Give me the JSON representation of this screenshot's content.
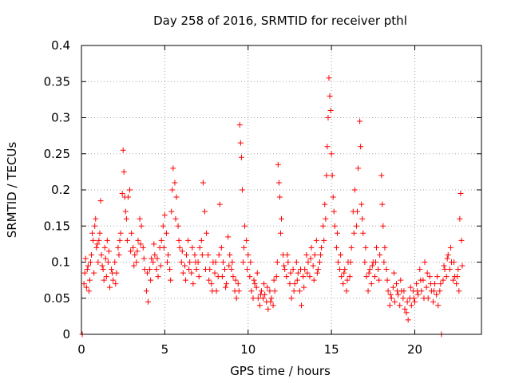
{
  "chart_data": {
    "type": "scatter",
    "title": "Day 258 of 2016, SRMTID for receiver pthl",
    "xlabel": "GPS time / hours",
    "ylabel": "SRMTID / TECUs",
    "xlim": [
      0,
      24
    ],
    "ylim": [
      0,
      0.4
    ],
    "x_ticks": [
      0,
      5,
      10,
      15,
      20
    ],
    "y_ticks": [
      0,
      0.05,
      0.1,
      0.15,
      0.2,
      0.25,
      0.3,
      0.35,
      0.4
    ],
    "grid": true,
    "marker": "+",
    "color": "#ff0000",
    "series_name": "SRMTID",
    "points": [
      [
        0.05,
        0.0
      ],
      [
        0.2,
        0.085
      ],
      [
        0.3,
        0.065
      ],
      [
        0.4,
        0.095
      ],
      [
        0.5,
        0.075
      ],
      [
        0.6,
        0.11
      ],
      [
        0.7,
        0.13
      ],
      [
        0.8,
        0.15
      ],
      [
        0.9,
        0.12
      ],
      [
        1.0,
        0.1
      ],
      [
        1.1,
        0.14
      ],
      [
        1.15,
        0.185
      ],
      [
        1.2,
        0.11
      ],
      [
        1.3,
        0.09
      ],
      [
        1.4,
        0.12
      ],
      [
        1.5,
        0.08
      ],
      [
        1.6,
        0.1
      ],
      [
        1.7,
        0.065
      ],
      [
        1.8,
        0.09
      ],
      [
        1.9,
        0.075
      ],
      [
        2.0,
        0.1
      ],
      [
        2.1,
        0.085
      ],
      [
        2.2,
        0.12
      ],
      [
        2.3,
        0.13
      ],
      [
        2.45,
        0.195
      ],
      [
        2.5,
        0.255
      ],
      [
        2.55,
        0.225
      ],
      [
        2.6,
        0.19
      ],
      [
        2.7,
        0.16
      ],
      [
        2.8,
        0.19
      ],
      [
        2.9,
        0.2
      ],
      [
        3.0,
        0.14
      ],
      [
        3.1,
        0.12
      ],
      [
        3.2,
        0.11
      ],
      [
        3.3,
        0.1
      ],
      [
        3.4,
        0.13
      ],
      [
        3.5,
        0.16
      ],
      [
        3.6,
        0.15
      ],
      [
        3.7,
        0.12
      ],
      [
        3.8,
        0.09
      ],
      [
        3.9,
        0.06
      ],
      [
        4.0,
        0.045
      ],
      [
        4.1,
        0.09
      ],
      [
        4.2,
        0.105
      ],
      [
        4.3,
        0.1
      ],
      [
        4.4,
        0.11
      ],
      [
        4.5,
        0.09
      ],
      [
        4.6,
        0.08
      ],
      [
        4.7,
        0.12
      ],
      [
        4.8,
        0.13
      ],
      [
        4.9,
        0.15
      ],
      [
        5.0,
        0.165
      ],
      [
        5.1,
        0.14
      ],
      [
        5.2,
        0.11
      ],
      [
        5.3,
        0.09
      ],
      [
        5.4,
        0.17
      ],
      [
        5.5,
        0.23
      ],
      [
        5.6,
        0.21
      ],
      [
        5.7,
        0.19
      ],
      [
        5.8,
        0.15
      ],
      [
        5.9,
        0.12
      ],
      [
        6.0,
        0.1
      ],
      [
        6.1,
        0.085
      ],
      [
        6.2,
        0.095
      ],
      [
        6.3,
        0.11
      ],
      [
        6.4,
        0.13
      ],
      [
        6.5,
        0.1
      ],
      [
        6.6,
        0.085
      ],
      [
        6.7,
        0.07
      ],
      [
        6.8,
        0.11
      ],
      [
        6.9,
        0.09
      ],
      [
        7.0,
        0.1
      ],
      [
        7.1,
        0.12
      ],
      [
        7.2,
        0.13
      ],
      [
        7.3,
        0.21
      ],
      [
        7.4,
        0.17
      ],
      [
        7.5,
        0.14
      ],
      [
        7.6,
        0.11
      ],
      [
        7.7,
        0.09
      ],
      [
        7.8,
        0.07
      ],
      [
        7.9,
        0.1
      ],
      [
        8.0,
        0.085
      ],
      [
        8.1,
        0.06
      ],
      [
        8.2,
        0.08
      ],
      [
        8.3,
        0.18
      ],
      [
        8.4,
        0.12
      ],
      [
        8.5,
        0.1
      ],
      [
        8.6,
        0.09
      ],
      [
        8.7,
        0.07
      ],
      [
        8.8,
        0.135
      ],
      [
        8.9,
        0.11
      ],
      [
        9.0,
        0.09
      ],
      [
        9.1,
        0.08
      ],
      [
        9.2,
        0.06
      ],
      [
        9.3,
        0.05
      ],
      [
        9.4,
        0.07
      ],
      [
        9.5,
        0.29
      ],
      [
        9.55,
        0.265
      ],
      [
        9.6,
        0.245
      ],
      [
        9.65,
        0.2
      ],
      [
        9.7,
        0.1
      ],
      [
        9.8,
        0.15
      ],
      [
        9.9,
        0.13
      ],
      [
        10.0,
        0.11
      ],
      [
        10.1,
        0.08
      ],
      [
        10.2,
        0.06
      ],
      [
        10.3,
        0.05
      ],
      [
        10.4,
        0.07
      ],
      [
        10.5,
        0.065
      ],
      [
        10.6,
        0.05
      ],
      [
        10.7,
        0.04
      ],
      [
        10.8,
        0.06
      ],
      [
        10.9,
        0.05
      ],
      [
        11.0,
        0.055
      ],
      [
        11.1,
        0.045
      ],
      [
        11.2,
        0.035
      ],
      [
        11.3,
        0.06
      ],
      [
        11.4,
        0.05
      ],
      [
        11.5,
        0.04
      ],
      [
        11.6,
        0.06
      ],
      [
        11.7,
        0.08
      ],
      [
        11.8,
        0.235
      ],
      [
        11.85,
        0.21
      ],
      [
        11.9,
        0.19
      ],
      [
        12.0,
        0.16
      ],
      [
        12.1,
        0.11
      ],
      [
        12.2,
        0.09
      ],
      [
        12.3,
        0.08
      ],
      [
        12.4,
        0.1
      ],
      [
        12.5,
        0.07
      ],
      [
        12.6,
        0.05
      ],
      [
        12.7,
        0.09
      ],
      [
        12.8,
        0.07
      ],
      [
        12.9,
        0.1
      ],
      [
        13.0,
        0.085
      ],
      [
        13.1,
        0.06
      ],
      [
        13.2,
        0.04
      ],
      [
        13.3,
        0.08
      ],
      [
        13.4,
        0.09
      ],
      [
        13.5,
        0.11
      ],
      [
        13.6,
        0.1
      ],
      [
        13.7,
        0.08
      ],
      [
        13.8,
        0.12
      ],
      [
        13.9,
        0.095
      ],
      [
        14.0,
        0.11
      ],
      [
        14.1,
        0.13
      ],
      [
        14.2,
        0.09
      ],
      [
        14.3,
        0.1
      ],
      [
        14.4,
        0.12
      ],
      [
        14.5,
        0.15
      ],
      [
        14.6,
        0.18
      ],
      [
        14.7,
        0.22
      ],
      [
        14.75,
        0.26
      ],
      [
        14.8,
        0.3
      ],
      [
        14.85,
        0.355
      ],
      [
        14.9,
        0.33
      ],
      [
        14.95,
        0.31
      ],
      [
        15.0,
        0.25
      ],
      [
        15.05,
        0.22
      ],
      [
        15.1,
        0.19
      ],
      [
        15.2,
        0.15
      ],
      [
        15.3,
        0.12
      ],
      [
        15.4,
        0.1
      ],
      [
        15.5,
        0.09
      ],
      [
        15.6,
        0.08
      ],
      [
        15.7,
        0.07
      ],
      [
        15.8,
        0.09
      ],
      [
        15.9,
        0.06
      ],
      [
        16.0,
        0.1
      ],
      [
        16.1,
        0.08
      ],
      [
        16.2,
        0.12
      ],
      [
        16.3,
        0.17
      ],
      [
        16.4,
        0.2
      ],
      [
        16.5,
        0.15
      ],
      [
        16.6,
        0.23
      ],
      [
        16.7,
        0.295
      ],
      [
        16.75,
        0.26
      ],
      [
        16.8,
        0.18
      ],
      [
        16.9,
        0.14
      ],
      [
        17.0,
        0.1
      ],
      [
        17.1,
        0.08
      ],
      [
        17.2,
        0.06
      ],
      [
        17.3,
        0.09
      ],
      [
        17.4,
        0.07
      ],
      [
        17.5,
        0.1
      ],
      [
        17.6,
        0.08
      ],
      [
        17.7,
        0.12
      ],
      [
        17.8,
        0.09
      ],
      [
        17.9,
        0.11
      ],
      [
        18.0,
        0.22
      ],
      [
        18.05,
        0.18
      ],
      [
        18.1,
        0.15
      ],
      [
        18.2,
        0.12
      ],
      [
        18.3,
        0.09
      ],
      [
        18.4,
        0.06
      ],
      [
        18.5,
        0.04
      ],
      [
        18.6,
        0.05
      ],
      [
        18.7,
        0.065
      ],
      [
        18.8,
        0.045
      ],
      [
        18.9,
        0.07
      ],
      [
        19.0,
        0.055
      ],
      [
        19.1,
        0.04
      ],
      [
        19.2,
        0.06
      ],
      [
        19.3,
        0.05
      ],
      [
        19.4,
        0.035
      ],
      [
        19.5,
        0.03
      ],
      [
        19.6,
        0.02
      ],
      [
        19.7,
        0.05
      ],
      [
        19.8,
        0.04
      ],
      [
        19.9,
        0.06
      ],
      [
        20.0,
        0.045
      ],
      [
        20.1,
        0.07
      ],
      [
        20.2,
        0.055
      ],
      [
        20.3,
        0.09
      ],
      [
        20.4,
        0.06
      ],
      [
        20.5,
        0.075
      ],
      [
        20.6,
        0.1
      ],
      [
        20.7,
        0.065
      ],
      [
        20.8,
        0.05
      ],
      [
        20.9,
        0.08
      ],
      [
        21.0,
        0.06
      ],
      [
        21.1,
        0.045
      ],
      [
        21.2,
        0.07
      ],
      [
        21.3,
        0.055
      ],
      [
        21.4,
        0.04
      ],
      [
        21.5,
        0.06
      ],
      [
        21.6,
        0.0
      ],
      [
        21.7,
        0.075
      ],
      [
        21.8,
        0.09
      ],
      [
        21.9,
        0.08
      ],
      [
        22.0,
        0.11
      ],
      [
        22.1,
        0.09
      ],
      [
        22.2,
        0.1
      ],
      [
        22.3,
        0.075
      ],
      [
        22.4,
        0.08
      ],
      [
        22.5,
        0.07
      ],
      [
        22.6,
        0.09
      ],
      [
        22.7,
        0.16
      ],
      [
        22.75,
        0.195
      ],
      [
        22.8,
        0.13
      ],
      [
        0.15,
        0.07
      ],
      [
        0.35,
        0.09
      ],
      [
        0.55,
        0.1
      ],
      [
        0.75,
        0.085
      ],
      [
        0.95,
        0.125
      ],
      [
        1.25,
        0.095
      ],
      [
        1.45,
        0.105
      ],
      [
        1.65,
        0.115
      ],
      [
        1.85,
        0.085
      ],
      [
        2.05,
        0.07
      ],
      [
        2.25,
        0.11
      ],
      [
        2.35,
        0.14
      ],
      [
        2.65,
        0.17
      ],
      [
        2.75,
        0.13
      ],
      [
        2.95,
        0.115
      ],
      [
        3.15,
        0.095
      ],
      [
        3.35,
        0.115
      ],
      [
        3.55,
        0.125
      ],
      [
        3.75,
        0.105
      ],
      [
        3.95,
        0.085
      ],
      [
        4.15,
        0.075
      ],
      [
        4.35,
        0.125
      ],
      [
        4.55,
        0.105
      ],
      [
        4.75,
        0.095
      ],
      [
        4.95,
        0.12
      ],
      [
        5.15,
        0.1
      ],
      [
        5.35,
        0.075
      ],
      [
        5.45,
        0.2
      ],
      [
        5.65,
        0.16
      ],
      [
        5.85,
        0.13
      ],
      [
        6.05,
        0.115
      ],
      [
        6.25,
        0.075
      ],
      [
        6.45,
        0.09
      ],
      [
        6.65,
        0.12
      ],
      [
        6.85,
        0.1
      ],
      [
        7.05,
        0.08
      ],
      [
        7.25,
        0.11
      ],
      [
        7.45,
        0.09
      ],
      [
        7.65,
        0.075
      ],
      [
        7.85,
        0.06
      ],
      [
        8.05,
        0.1
      ],
      [
        8.25,
        0.11
      ],
      [
        8.45,
        0.08
      ],
      [
        8.65,
        0.065
      ],
      [
        8.85,
        0.095
      ],
      [
        9.05,
        0.1
      ],
      [
        9.25,
        0.075
      ],
      [
        9.45,
        0.06
      ],
      [
        9.75,
        0.12
      ],
      [
        9.95,
        0.09
      ],
      [
        10.15,
        0.1
      ],
      [
        10.35,
        0.075
      ],
      [
        10.55,
        0.085
      ],
      [
        10.75,
        0.055
      ],
      [
        10.95,
        0.07
      ],
      [
        11.15,
        0.065
      ],
      [
        11.35,
        0.045
      ],
      [
        11.55,
        0.075
      ],
      [
        11.75,
        0.1
      ],
      [
        11.95,
        0.14
      ],
      [
        12.15,
        0.095
      ],
      [
        12.35,
        0.11
      ],
      [
        12.55,
        0.085
      ],
      [
        12.75,
        0.06
      ],
      [
        12.95,
        0.075
      ],
      [
        13.15,
        0.09
      ],
      [
        13.35,
        0.065
      ],
      [
        13.55,
        0.085
      ],
      [
        13.75,
        0.105
      ],
      [
        13.95,
        0.075
      ],
      [
        14.15,
        0.085
      ],
      [
        14.35,
        0.11
      ],
      [
        14.55,
        0.13
      ],
      [
        14.65,
        0.16
      ],
      [
        15.15,
        0.17
      ],
      [
        15.35,
        0.14
      ],
      [
        15.55,
        0.11
      ],
      [
        15.75,
        0.085
      ],
      [
        15.95,
        0.075
      ],
      [
        16.15,
        0.1
      ],
      [
        16.35,
        0.14
      ],
      [
        16.55,
        0.17
      ],
      [
        16.85,
        0.16
      ],
      [
        17.05,
        0.12
      ],
      [
        17.25,
        0.085
      ],
      [
        17.45,
        0.095
      ],
      [
        17.65,
        0.1
      ],
      [
        17.85,
        0.075
      ],
      [
        18.15,
        0.1
      ],
      [
        18.35,
        0.075
      ],
      [
        18.55,
        0.055
      ],
      [
        18.75,
        0.085
      ],
      [
        18.95,
        0.06
      ],
      [
        19.15,
        0.075
      ],
      [
        19.35,
        0.06
      ],
      [
        19.55,
        0.045
      ],
      [
        19.75,
        0.065
      ],
      [
        19.95,
        0.05
      ],
      [
        20.15,
        0.06
      ],
      [
        20.35,
        0.075
      ],
      [
        20.55,
        0.05
      ],
      [
        20.75,
        0.085
      ],
      [
        20.95,
        0.07
      ],
      [
        21.15,
        0.06
      ],
      [
        21.35,
        0.08
      ],
      [
        21.55,
        0.07
      ],
      [
        21.75,
        0.095
      ],
      [
        21.95,
        0.105
      ],
      [
        22.15,
        0.12
      ],
      [
        22.35,
        0.1
      ],
      [
        22.55,
        0.08
      ],
      [
        22.65,
        0.06
      ],
      [
        22.85,
        0.095
      ],
      [
        0.25,
        0.105
      ],
      [
        0.45,
        0.06
      ],
      [
        0.65,
        0.14
      ],
      [
        0.85,
        0.16
      ],
      [
        1.05,
        0.13
      ],
      [
        1.35,
        0.075
      ],
      [
        1.55,
        0.13
      ]
    ]
  }
}
